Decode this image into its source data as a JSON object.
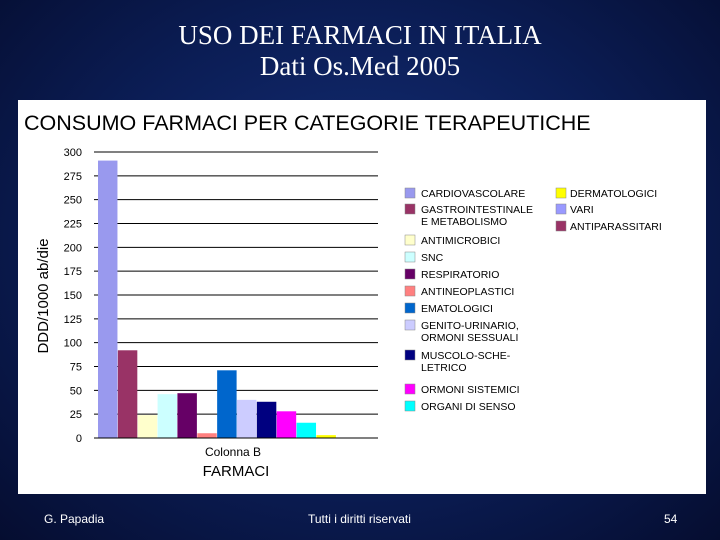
{
  "slide": {
    "title_line1": "USO DEI FARMACI IN ITALIA",
    "title_line2": "Dati  Os.Med 2005"
  },
  "footer": {
    "author": "G. Papadia",
    "rights": "Tutti i diritti riservati",
    "page": "54"
  },
  "chart_data": {
    "type": "bar",
    "title": "CONSUMO FARMACI PER CATEGORIE TERAPEUTICHE",
    "xlabel": "FARMACI",
    "xlabel_sub": "Colonna B",
    "ylabel": "DDD/1000 ab/die",
    "ylim": [
      0,
      300
    ],
    "yticks": [
      0,
      25,
      50,
      75,
      100,
      125,
      150,
      175,
      200,
      225,
      250,
      275,
      300
    ],
    "grid": true,
    "legend_position": "right",
    "categories": [
      "CARDIOVASCOLARE",
      "GASTROINTESTINALE E METABOLISMO",
      "ANTIMICROBICI",
      "SNC",
      "RESPIRATORIO",
      "ANTINEOPLASTICI",
      "EMATOLOGICI",
      "GENITO-URINARIO, ORMONI SESSUALI",
      "MUSCOLO-SCHELETRICO",
      "ORMONI SISTEMICI",
      "ORGANI DI SENSO",
      "DERMATOLOGICI",
      "VARI",
      "ANTIPARASSITARI"
    ],
    "values": [
      291,
      92,
      24,
      46,
      47,
      5,
      71,
      40,
      38,
      28,
      16,
      3,
      0.5,
      0.3
    ],
    "colors": [
      "#9999ee",
      "#993366",
      "#ffffcc",
      "#ccffff",
      "#660066",
      "#ff8080",
      "#0066cc",
      "#ccccff",
      "#000080",
      "#ff00ff",
      "#00ffff",
      "#ffff00",
      "#9999ff",
      "#993366"
    ],
    "legend_col1": [
      {
        "lines": [
          "CARDIOVASCOLARE"
        ],
        "color": "#9999ee"
      },
      {
        "lines": [
          "GASTROINTESTINALE",
          "E METABOLISMO"
        ],
        "color": "#993366"
      },
      {
        "lines": [
          "ANTIMICROBICI"
        ],
        "color": "#ffffcc"
      },
      {
        "lines": [
          "SNC"
        ],
        "color": "#ccffff"
      },
      {
        "lines": [
          "RESPIRATORIO"
        ],
        "color": "#660066"
      },
      {
        "lines": [
          "ANTINEOPLASTICI"
        ],
        "color": "#ff8080"
      },
      {
        "lines": [
          "EMATOLOGICI"
        ],
        "color": "#0066cc"
      },
      {
        "lines": [
          "GENITO-URINARIO,",
          "ORMONI SESSUALI"
        ],
        "color": "#ccccff"
      },
      {
        "lines": [
          "MUSCOLO-SCHE-",
          "LETRICO"
        ],
        "color": "#000080"
      },
      {
        "lines": [
          "ORMONI SISTEMICI"
        ],
        "color": "#ff00ff"
      },
      {
        "lines": [
          "ORGANI DI SENSO"
        ],
        "color": "#00ffff"
      }
    ],
    "legend_col2": [
      {
        "lines": [
          "DERMATOLOGICI"
        ],
        "color": "#ffff00"
      },
      {
        "lines": [
          "VARI"
        ],
        "color": "#9999ff"
      },
      {
        "lines": [
          "ANTIPARASSITARI"
        ],
        "color": "#993366"
      }
    ]
  }
}
